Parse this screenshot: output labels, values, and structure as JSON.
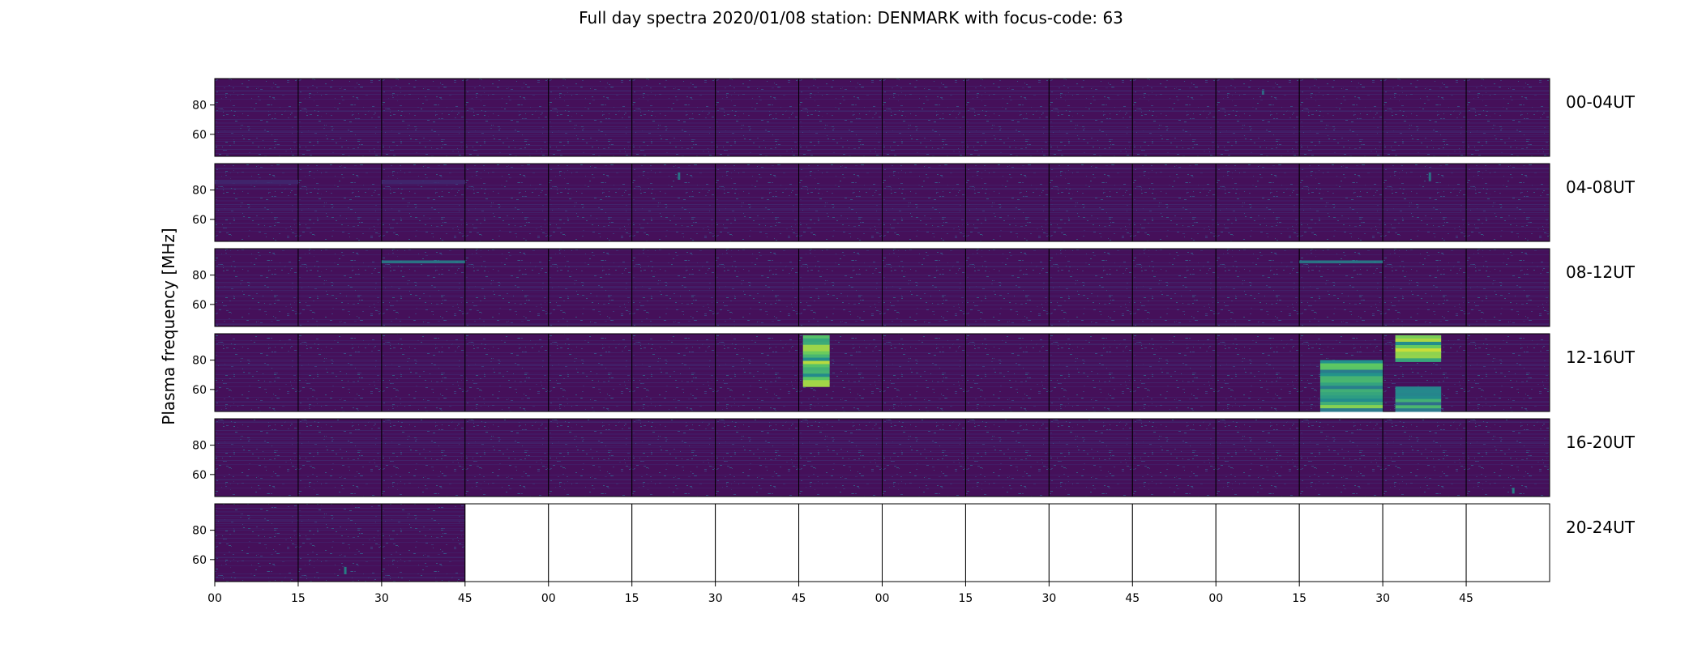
{
  "chart_data": {
    "type": "heatmap",
    "title": "Full day spectra 2020/01/08 station: DENMARK with focus-code: 63",
    "ylabel": "Plasma frequency [MHz]",
    "xlabel": "",
    "colormap": "viridis",
    "background_color": "#45105a",
    "row_labels": [
      "00-04UT",
      "04-08UT",
      "08-12UT",
      "12-16UT",
      "16-20UT",
      "20-24UT"
    ],
    "panels_per_row": 16,
    "panel_minutes": 15,
    "filled_panels_last_row": 3,
    "y_ticks": [
      "60",
      "80"
    ],
    "y_tick_values": [
      60,
      80
    ],
    "ylim": [
      45,
      98
    ],
    "x_ticks": [
      "00",
      "15",
      "30",
      "45",
      "00",
      "15",
      "30",
      "45",
      "00",
      "15",
      "30",
      "45",
      "00",
      "15",
      "30",
      "45"
    ],
    "x_tick_minutes": [
      0,
      15,
      30,
      45,
      60,
      75,
      90,
      105,
      120,
      135,
      150,
      165,
      180,
      195,
      210,
      225
    ],
    "features": [
      {
        "row": 0,
        "panel": 12,
        "kind": "streak",
        "freq": [
          87,
          90
        ],
        "intensity": 0.4
      },
      {
        "row": 1,
        "panel": 0,
        "kind": "band",
        "freq": [
          84,
          87
        ],
        "intensity": 0.12
      },
      {
        "row": 1,
        "panel": 2,
        "kind": "band",
        "freq": [
          84,
          87
        ],
        "intensity": 0.12
      },
      {
        "row": 1,
        "panel": 5,
        "kind": "streak",
        "freq": [
          87,
          92
        ],
        "intensity": 0.45
      },
      {
        "row": 1,
        "panel": 14,
        "kind": "streak",
        "freq": [
          86,
          92
        ],
        "intensity": 0.45
      },
      {
        "row": 2,
        "panel": 2,
        "kind": "band",
        "freq": [
          88,
          90
        ],
        "intensity": 0.45
      },
      {
        "row": 2,
        "panel": 13,
        "kind": "band",
        "freq": [
          88,
          90
        ],
        "intensity": 0.45
      },
      {
        "row": 3,
        "panel": 7,
        "kind": "burst",
        "freq": [
          62,
          97
        ],
        "intensity": 0.9
      },
      {
        "row": 3,
        "panel": 13,
        "kind": "burst",
        "freq": [
          45,
          80
        ],
        "intensity": 0.85
      },
      {
        "row": 3,
        "panel": 14,
        "kind": "burst",
        "freq": [
          79,
          97
        ],
        "intensity": 0.95
      },
      {
        "row": 3,
        "panel": 14,
        "kind": "burst",
        "freq": [
          45,
          62
        ],
        "intensity": 0.7
      },
      {
        "row": 4,
        "panel": 15,
        "kind": "streak",
        "freq": [
          47,
          51
        ],
        "intensity": 0.5
      },
      {
        "row": 5,
        "panel": 1,
        "kind": "streak",
        "freq": [
          50,
          55
        ],
        "intensity": 0.5
      }
    ]
  }
}
